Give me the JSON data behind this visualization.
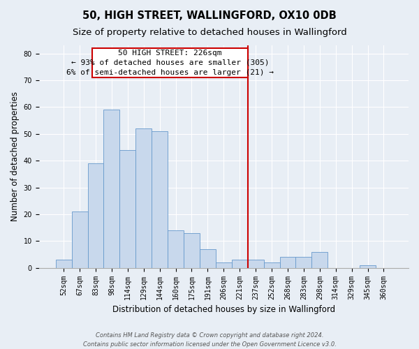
{
  "title": "50, HIGH STREET, WALLINGFORD, OX10 0DB",
  "subtitle": "Size of property relative to detached houses in Wallingford",
  "xlabel": "Distribution of detached houses by size in Wallingford",
  "ylabel": "Number of detached properties",
  "footer_line1": "Contains HM Land Registry data © Crown copyright and database right 2024.",
  "footer_line2": "Contains public sector information licensed under the Open Government Licence v3.0.",
  "bin_labels": [
    "52sqm",
    "67sqm",
    "83sqm",
    "98sqm",
    "114sqm",
    "129sqm",
    "144sqm",
    "160sqm",
    "175sqm",
    "191sqm",
    "206sqm",
    "221sqm",
    "237sqm",
    "252sqm",
    "268sqm",
    "283sqm",
    "298sqm",
    "314sqm",
    "329sqm",
    "345sqm",
    "360sqm"
  ],
  "bar_values": [
    3,
    21,
    39,
    59,
    44,
    52,
    51,
    14,
    13,
    7,
    2,
    3,
    3,
    2,
    4,
    4,
    6,
    0,
    0,
    1,
    0
  ],
  "bar_color": "#c8d8ec",
  "bar_edge_color": "#6699cc",
  "vline_color": "#cc0000",
  "annotation_title": "50 HIGH STREET: 226sqm",
  "annotation_line1": "← 93% of detached houses are smaller (305)",
  "annotation_line2": "6% of semi-detached houses are larger (21) →",
  "annotation_box_color": "white",
  "annotation_box_edge": "#cc0000",
  "ylim": [
    0,
    83
  ],
  "yticks": [
    0,
    10,
    20,
    30,
    40,
    50,
    60,
    70,
    80
  ],
  "background_color": "#e8eef5",
  "plot_background": "#e8eef5",
  "title_fontsize": 10.5,
  "subtitle_fontsize": 9.5,
  "axis_label_fontsize": 8.5,
  "tick_fontsize": 7,
  "footer_fontsize": 6,
  "grid_color": "white",
  "vline_x": 11.5
}
